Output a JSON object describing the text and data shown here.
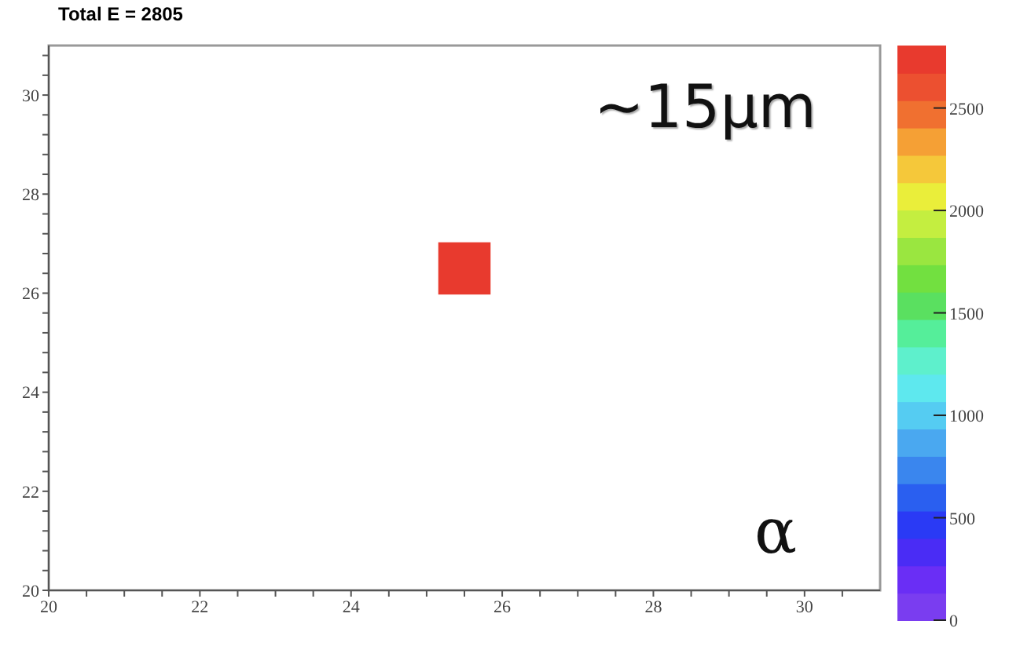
{
  "chart_data": {
    "type": "scatter",
    "title": "Total E = 2805",
    "x": [
      25.5
    ],
    "values": [
      26.5
    ],
    "cvalues": [
      2805
    ],
    "marker": "square",
    "xlim": [
      20,
      31
    ],
    "xticks": [
      20,
      {
        "value": 20.5,
        "label": null
      },
      {
        "value": 21,
        "label": null
      },
      {
        "value": 21.5,
        "label": null
      },
      22,
      {
        "value": 22.5,
        "label": null
      },
      {
        "value": 23,
        "label": null
      },
      {
        "value": 23.5,
        "label": null
      },
      24,
      {
        "value": 24.5,
        "label": null
      },
      {
        "value": 25,
        "label": null
      },
      {
        "value": 25.5,
        "label": null
      },
      26,
      {
        "value": 26.5,
        "label": null
      },
      {
        "value": 27,
        "label": null
      },
      {
        "value": 27.5,
        "label": null
      },
      28,
      {
        "value": 28.5,
        "label": null
      },
      {
        "value": 29,
        "label": null
      },
      {
        "value": 29.5,
        "label": null
      },
      30,
      {
        "value": 30.5,
        "label": null
      }
    ],
    "ylim": [
      20,
      31
    ],
    "yticks": [
      20,
      {
        "value": 20.4,
        "label": null
      },
      {
        "value": 20.8,
        "label": null
      },
      {
        "value": 21.2,
        "label": null
      },
      {
        "value": 21.6,
        "label": null
      },
      22,
      {
        "value": 22.4,
        "label": null
      },
      {
        "value": 22.8,
        "label": null
      },
      {
        "value": 23.2,
        "label": null
      },
      {
        "value": 23.6,
        "label": null
      },
      24,
      {
        "value": 24.4,
        "label": null
      },
      {
        "value": 24.8,
        "label": null
      },
      {
        "value": 25.2,
        "label": null
      },
      {
        "value": 25.6,
        "label": null
      },
      26,
      {
        "value": 26.4,
        "label": null
      },
      {
        "value": 26.8,
        "label": null
      },
      {
        "value": 27.2,
        "label": null
      },
      {
        "value": 27.6,
        "label": null
      },
      28,
      {
        "value": 28.4,
        "label": null
      },
      {
        "value": 28.8,
        "label": null
      },
      {
        "value": 29.2,
        "label": null
      },
      {
        "value": 29.6,
        "label": null
      },
      30,
      {
        "value": 30.4,
        "label": null
      },
      {
        "value": 30.8,
        "label": null
      }
    ],
    "clim": [
      0,
      2805
    ],
    "cticks": [
      0,
      500,
      1000,
      1500,
      2000,
      2500
    ],
    "annotations": [
      "~15μm",
      "α"
    ]
  }
}
